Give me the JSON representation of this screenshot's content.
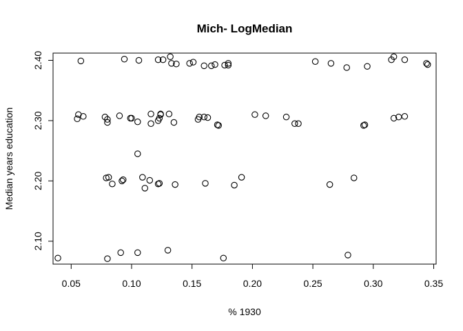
{
  "chart_data": {
    "type": "scatter",
    "title": "Mich- LogMedian",
    "xlabel": "% 1930",
    "ylabel": "Median years education",
    "xlim": [
      0.035,
      0.352
    ],
    "ylim": [
      2.062,
      2.412
    ],
    "x_ticks": [
      "0.05",
      "0.10",
      "0.15",
      "0.20",
      "0.25",
      "0.30",
      "0.35"
    ],
    "x_tick_values": [
      0.05,
      0.1,
      0.15,
      0.2,
      0.25,
      0.3,
      0.35
    ],
    "y_ticks": [
      "2.10",
      "2.20",
      "2.30",
      "2.40"
    ],
    "y_tick_values": [
      2.1,
      2.2,
      2.3,
      2.4
    ],
    "marker": "open-circle",
    "points": [
      {
        "x": 0.058,
        "y": 2.399
      },
      {
        "x": 0.094,
        "y": 2.402
      },
      {
        "x": 0.106,
        "y": 2.4
      },
      {
        "x": 0.122,
        "y": 2.401
      },
      {
        "x": 0.126,
        "y": 2.401
      },
      {
        "x": 0.132,
        "y": 2.406
      },
      {
        "x": 0.133,
        "y": 2.395
      },
      {
        "x": 0.137,
        "y": 2.394
      },
      {
        "x": 0.148,
        "y": 2.395
      },
      {
        "x": 0.151,
        "y": 2.397
      },
      {
        "x": 0.16,
        "y": 2.391
      },
      {
        "x": 0.166,
        "y": 2.391
      },
      {
        "x": 0.169,
        "y": 2.393
      },
      {
        "x": 0.177,
        "y": 2.392
      },
      {
        "x": 0.18,
        "y": 2.392
      },
      {
        "x": 0.18,
        "y": 2.395
      },
      {
        "x": 0.252,
        "y": 2.398
      },
      {
        "x": 0.265,
        "y": 2.395
      },
      {
        "x": 0.278,
        "y": 2.388
      },
      {
        "x": 0.295,
        "y": 2.39
      },
      {
        "x": 0.315,
        "y": 2.401
      },
      {
        "x": 0.317,
        "y": 2.406
      },
      {
        "x": 0.326,
        "y": 2.401
      },
      {
        "x": 0.344,
        "y": 2.395
      },
      {
        "x": 0.345,
        "y": 2.393
      },
      {
        "x": 0.055,
        "y": 2.303
      },
      {
        "x": 0.056,
        "y": 2.31
      },
      {
        "x": 0.06,
        "y": 2.307
      },
      {
        "x": 0.078,
        "y": 2.306
      },
      {
        "x": 0.08,
        "y": 2.297
      },
      {
        "x": 0.08,
        "y": 2.302
      },
      {
        "x": 0.09,
        "y": 2.308
      },
      {
        "x": 0.099,
        "y": 2.304
      },
      {
        "x": 0.1,
        "y": 2.304
      },
      {
        "x": 0.105,
        "y": 2.298
      },
      {
        "x": 0.116,
        "y": 2.311
      },
      {
        "x": 0.116,
        "y": 2.295
      },
      {
        "x": 0.122,
        "y": 2.3
      },
      {
        "x": 0.123,
        "y": 2.304
      },
      {
        "x": 0.124,
        "y": 2.311
      },
      {
        "x": 0.124,
        "y": 2.31
      },
      {
        "x": 0.131,
        "y": 2.311
      },
      {
        "x": 0.135,
        "y": 2.297
      },
      {
        "x": 0.155,
        "y": 2.302
      },
      {
        "x": 0.156,
        "y": 2.306
      },
      {
        "x": 0.16,
        "y": 2.306
      },
      {
        "x": 0.163,
        "y": 2.305
      },
      {
        "x": 0.171,
        "y": 2.293
      },
      {
        "x": 0.172,
        "y": 2.292
      },
      {
        "x": 0.202,
        "y": 2.31
      },
      {
        "x": 0.211,
        "y": 2.308
      },
      {
        "x": 0.228,
        "y": 2.306
      },
      {
        "x": 0.235,
        "y": 2.295
      },
      {
        "x": 0.238,
        "y": 2.295
      },
      {
        "x": 0.292,
        "y": 2.292
      },
      {
        "x": 0.293,
        "y": 2.293
      },
      {
        "x": 0.317,
        "y": 2.304
      },
      {
        "x": 0.321,
        "y": 2.306
      },
      {
        "x": 0.326,
        "y": 2.307
      },
      {
        "x": 0.105,
        "y": 2.245
      },
      {
        "x": 0.079,
        "y": 2.205
      },
      {
        "x": 0.081,
        "y": 2.206
      },
      {
        "x": 0.084,
        "y": 2.195
      },
      {
        "x": 0.092,
        "y": 2.2
      },
      {
        "x": 0.093,
        "y": 2.202
      },
      {
        "x": 0.109,
        "y": 2.206
      },
      {
        "x": 0.111,
        "y": 2.188
      },
      {
        "x": 0.115,
        "y": 2.201
      },
      {
        "x": 0.122,
        "y": 2.195
      },
      {
        "x": 0.123,
        "y": 2.196
      },
      {
        "x": 0.136,
        "y": 2.194
      },
      {
        "x": 0.161,
        "y": 2.196
      },
      {
        "x": 0.185,
        "y": 2.193
      },
      {
        "x": 0.191,
        "y": 2.206
      },
      {
        "x": 0.264,
        "y": 2.194
      },
      {
        "x": 0.284,
        "y": 2.205
      },
      {
        "x": 0.039,
        "y": 2.072
      },
      {
        "x": 0.08,
        "y": 2.071
      },
      {
        "x": 0.091,
        "y": 2.081
      },
      {
        "x": 0.105,
        "y": 2.081
      },
      {
        "x": 0.13,
        "y": 2.085
      },
      {
        "x": 0.176,
        "y": 2.072
      },
      {
        "x": 0.279,
        "y": 2.077
      }
    ]
  }
}
